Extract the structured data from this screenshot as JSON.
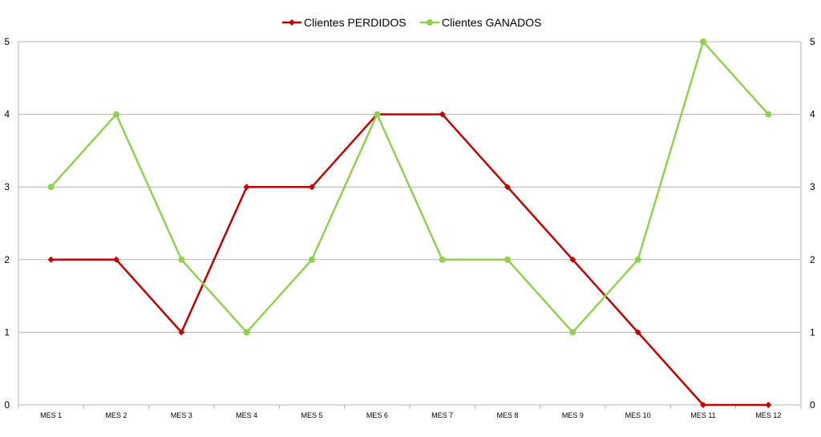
{
  "chart_data": {
    "type": "line",
    "title": "",
    "xlabel": "",
    "ylabel": "",
    "categories": [
      "MES 1",
      "MES 2",
      "MES 3",
      "MES 4",
      "MES 5",
      "MES 6",
      "MES 7",
      "MES 8",
      "MES 9",
      "MES 10",
      "MES 11",
      "MES 12"
    ],
    "ylim": [
      0,
      5
    ],
    "yticks": [
      0,
      1,
      2,
      3,
      4,
      5
    ],
    "y_axis_labels_left": true,
    "y_axis_labels_right": true,
    "grid": "horizontal",
    "legend_position": "top",
    "series": [
      {
        "name": "Clientes PERDIDOS",
        "color": "#c00000",
        "marker": "diamond",
        "values": [
          2,
          2,
          1,
          3,
          3,
          4,
          4,
          3,
          2,
          1,
          0,
          0
        ]
      },
      {
        "name": "Clientes GANADOS",
        "color": "#92d050",
        "marker": "circle",
        "values": [
          3,
          4,
          2,
          1,
          2,
          4,
          2,
          2,
          1,
          2,
          5,
          4
        ]
      }
    ]
  }
}
